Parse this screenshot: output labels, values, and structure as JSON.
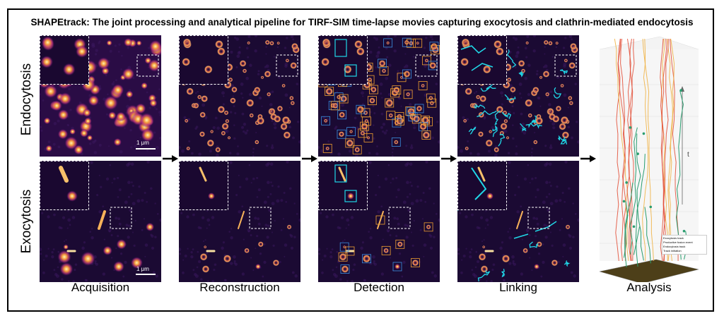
{
  "title": "SHAPEtrack: The joint processing and analytical pipeline for TIRF-SIM time-lapse movies capturing exocytosis and clathrin-mediated endocytosis",
  "rows": [
    "Endocytosis",
    "Exocytosis"
  ],
  "columns": [
    "Acquisition",
    "Reconstruction",
    "Detection",
    "Linking",
    "Analysis"
  ],
  "scalebar": "1 μm",
  "analysis": {
    "axis_label": "t",
    "legend": [
      "Exocytosis track",
      "Productive fusion event",
      "Endocytosis track",
      "Track initiation"
    ]
  },
  "colors": {
    "background": "#1b0a33",
    "endo_track": "#e24a33",
    "exo_track": "#2a9d6f",
    "detect_orange": "#f0a030",
    "detect_blue": "#3b8fe0",
    "link_cyan": "#20d8e8"
  }
}
